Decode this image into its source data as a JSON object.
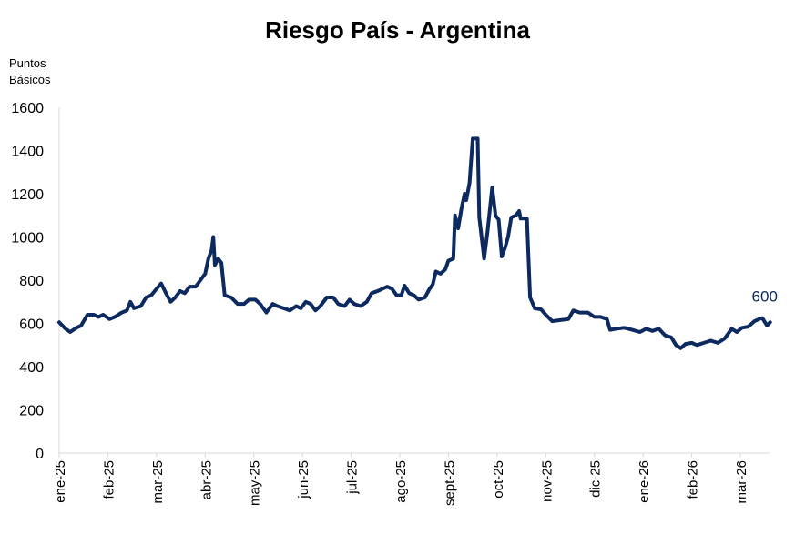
{
  "chart_data": {
    "type": "line",
    "title": "Riesgo País - Argentina",
    "ylabel": "Puntos Básicos",
    "xlabel": "",
    "ylim": [
      0,
      1600
    ],
    "y_ticks": [
      0,
      200,
      400,
      600,
      800,
      1000,
      1200,
      1400,
      1600
    ],
    "x_ticks": [
      "ene-25",
      "feb-25",
      "mar-25",
      "abr-25",
      "may-25",
      "jun-25",
      "jul-25",
      "ago-25",
      "sept-25",
      "oct-25",
      "nov-25",
      "dic-25",
      "ene-26",
      "feb-26",
      "mar-26"
    ],
    "grid": false,
    "legend": "none",
    "end_label": "600",
    "series": [
      {
        "color": "#0c2a60",
        "points": [
          [
            "2025-01-01",
            605
          ],
          [
            "2025-01-05",
            575
          ],
          [
            "2025-01-08",
            560
          ],
          [
            "2025-01-12",
            580
          ],
          [
            "2025-01-15",
            590
          ],
          [
            "2025-01-19",
            640
          ],
          [
            "2025-01-23",
            640
          ],
          [
            "2025-01-26",
            630
          ],
          [
            "2025-01-29",
            640
          ],
          [
            "2025-02-02",
            620
          ],
          [
            "2025-02-05",
            630
          ],
          [
            "2025-02-09",
            650
          ],
          [
            "2025-02-12",
            660
          ],
          [
            "2025-02-14",
            700
          ],
          [
            "2025-02-16",
            670
          ],
          [
            "2025-02-20",
            680
          ],
          [
            "2025-02-23",
            720
          ],
          [
            "2025-02-26",
            730
          ],
          [
            "2025-03-01",
            760
          ],
          [
            "2025-03-04",
            785
          ],
          [
            "2025-03-07",
            740
          ],
          [
            "2025-03-10",
            700
          ],
          [
            "2025-03-13",
            720
          ],
          [
            "2025-03-16",
            750
          ],
          [
            "2025-03-19",
            740
          ],
          [
            "2025-03-22",
            770
          ],
          [
            "2025-03-26",
            770
          ],
          [
            "2025-03-29",
            800
          ],
          [
            "2025-04-01",
            830
          ],
          [
            "2025-04-03",
            900
          ],
          [
            "2025-04-05",
            940
          ],
          [
            "2025-04-06",
            1000
          ],
          [
            "2025-04-07",
            870
          ],
          [
            "2025-04-09",
            900
          ],
          [
            "2025-04-11",
            880
          ],
          [
            "2025-04-13",
            730
          ],
          [
            "2025-04-17",
            720
          ],
          [
            "2025-04-21",
            690
          ],
          [
            "2025-04-25",
            690
          ],
          [
            "2025-04-28",
            710
          ],
          [
            "2025-05-02",
            710
          ],
          [
            "2025-05-05",
            690
          ],
          [
            "2025-05-09",
            650
          ],
          [
            "2025-05-13",
            690
          ],
          [
            "2025-05-16",
            680
          ],
          [
            "2025-05-20",
            670
          ],
          [
            "2025-05-24",
            660
          ],
          [
            "2025-05-28",
            680
          ],
          [
            "2025-05-31",
            670
          ],
          [
            "2025-06-03",
            700
          ],
          [
            "2025-06-06",
            690
          ],
          [
            "2025-06-09",
            660
          ],
          [
            "2025-06-12",
            680
          ],
          [
            "2025-06-16",
            720
          ],
          [
            "2025-06-20",
            720
          ],
          [
            "2025-06-23",
            690
          ],
          [
            "2025-06-27",
            680
          ],
          [
            "2025-06-30",
            710
          ],
          [
            "2025-07-03",
            690
          ],
          [
            "2025-07-07",
            680
          ],
          [
            "2025-07-11",
            700
          ],
          [
            "2025-07-14",
            740
          ],
          [
            "2025-07-18",
            750
          ],
          [
            "2025-07-21",
            760
          ],
          [
            "2025-07-24",
            770
          ],
          [
            "2025-07-27",
            760
          ],
          [
            "2025-07-30",
            730
          ],
          [
            "2025-08-02",
            730
          ],
          [
            "2025-08-04",
            775
          ],
          [
            "2025-08-07",
            740
          ],
          [
            "2025-08-10",
            730
          ],
          [
            "2025-08-13",
            710
          ],
          [
            "2025-08-17",
            720
          ],
          [
            "2025-08-20",
            760
          ],
          [
            "2025-08-22",
            780
          ],
          [
            "2025-08-24",
            840
          ],
          [
            "2025-08-27",
            830
          ],
          [
            "2025-08-30",
            850
          ],
          [
            "2025-09-01",
            890
          ],
          [
            "2025-09-04",
            900
          ],
          [
            "2025-09-05",
            1100
          ],
          [
            "2025-09-07",
            1040
          ],
          [
            "2025-09-09",
            1130
          ],
          [
            "2025-09-11",
            1200
          ],
          [
            "2025-09-12",
            1170
          ],
          [
            "2025-09-14",
            1250
          ],
          [
            "2025-09-16",
            1455
          ],
          [
            "2025-09-19",
            1455
          ],
          [
            "2025-09-20",
            1090
          ],
          [
            "2025-09-21",
            1030
          ],
          [
            "2025-09-23",
            900
          ],
          [
            "2025-09-25",
            1020
          ],
          [
            "2025-09-28",
            1230
          ],
          [
            "2025-09-30",
            1100
          ],
          [
            "2025-10-02",
            1080
          ],
          [
            "2025-10-04",
            910
          ],
          [
            "2025-10-06",
            950
          ],
          [
            "2025-10-08",
            1000
          ],
          [
            "2025-10-10",
            1090
          ],
          [
            "2025-10-13",
            1100
          ],
          [
            "2025-10-15",
            1120
          ],
          [
            "2025-10-16",
            1085
          ],
          [
            "2025-10-20",
            1085
          ],
          [
            "2025-10-22",
            720
          ],
          [
            "2025-10-25",
            670
          ],
          [
            "2025-10-29",
            665
          ],
          [
            "2025-11-01",
            640
          ],
          [
            "2025-11-05",
            610
          ],
          [
            "2025-11-10",
            615
          ],
          [
            "2025-11-15",
            620
          ],
          [
            "2025-11-18",
            660
          ],
          [
            "2025-11-22",
            650
          ],
          [
            "2025-11-27",
            650
          ],
          [
            "2025-12-01",
            630
          ],
          [
            "2025-12-05",
            630
          ],
          [
            "2025-12-09",
            620
          ],
          [
            "2025-12-11",
            570
          ],
          [
            "2025-12-15",
            575
          ],
          [
            "2025-12-20",
            580
          ],
          [
            "2025-12-25",
            570
          ],
          [
            "2025-12-30",
            560
          ],
          [
            "2026-01-03",
            575
          ],
          [
            "2026-01-07",
            565
          ],
          [
            "2026-01-11",
            575
          ],
          [
            "2026-01-15",
            545
          ],
          [
            "2026-01-19",
            535
          ],
          [
            "2026-01-22",
            500
          ],
          [
            "2026-01-25",
            485
          ],
          [
            "2026-01-28",
            505
          ],
          [
            "2026-02-01",
            510
          ],
          [
            "2026-02-04",
            500
          ],
          [
            "2026-02-08",
            510
          ],
          [
            "2026-02-12",
            520
          ],
          [
            "2026-02-16",
            510
          ],
          [
            "2026-02-20",
            530
          ],
          [
            "2026-02-24",
            575
          ],
          [
            "2026-02-27",
            560
          ],
          [
            "2026-03-02",
            580
          ],
          [
            "2026-03-06",
            585
          ],
          [
            "2026-03-10",
            610
          ],
          [
            "2026-03-13",
            620
          ],
          [
            "2026-03-15",
            625
          ],
          [
            "2026-03-18",
            590
          ],
          [
            "2026-03-20",
            605
          ]
        ]
      }
    ]
  }
}
